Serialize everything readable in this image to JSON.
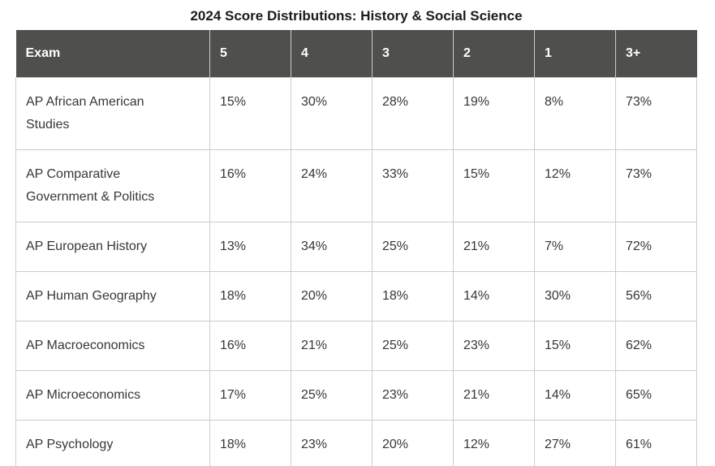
{
  "title": "2024 Score Distributions: History & Social Science",
  "chart_data": {
    "type": "table",
    "title": "2024 Score Distributions: History & Social Science",
    "columns": [
      "Exam",
      "5",
      "4",
      "3",
      "2",
      "1",
      "3+"
    ],
    "rows": [
      {
        "exam": "AP African American Studies",
        "values": [
          "15%",
          "30%",
          "28%",
          "19%",
          "8%",
          "73%"
        ]
      },
      {
        "exam": "AP Comparative Government & Politics",
        "values": [
          "16%",
          "24%",
          "33%",
          "15%",
          "12%",
          "73%"
        ]
      },
      {
        "exam": "AP European History",
        "values": [
          "13%",
          "34%",
          "25%",
          "21%",
          "7%",
          "72%"
        ]
      },
      {
        "exam": "AP Human Geography",
        "values": [
          "18%",
          "20%",
          "18%",
          "14%",
          "30%",
          "56%"
        ]
      },
      {
        "exam": "AP Macroeconomics",
        "values": [
          "16%",
          "21%",
          "25%",
          "23%",
          "15%",
          "62%"
        ]
      },
      {
        "exam": "AP Microeconomics",
        "values": [
          "17%",
          "25%",
          "23%",
          "21%",
          "14%",
          "65%"
        ]
      },
      {
        "exam": "AP Psychology",
        "values": [
          "18%",
          "23%",
          "20%",
          "12%",
          "27%",
          "61%"
        ]
      }
    ]
  },
  "colors": {
    "header_bg": "#4f4f4d",
    "header_text": "#ffffff",
    "header_separator": "#cbcbcb",
    "body_border": "#cccccc",
    "body_text": "#373737",
    "title_text": "#1b1b1b"
  }
}
